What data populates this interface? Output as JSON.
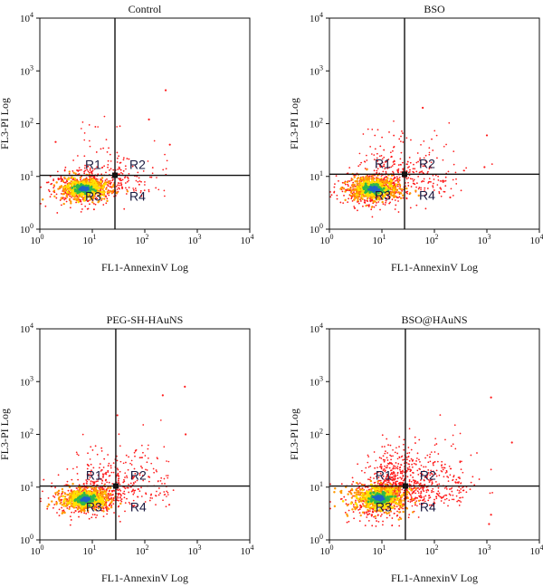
{
  "colors": {
    "scatter": "#ff1a1a",
    "density_mid": "#ff9900",
    "density_high": "#ffe100",
    "density_core": "#2eb84a",
    "density_peak": "#1e64c8",
    "axes": "#111111"
  },
  "chart_data": [
    {
      "type": "scatter",
      "title": "Control",
      "xlabel": "FL1-AnnexinV Log",
      "ylabel": "FL3-PI Log",
      "xscale": "log",
      "yscale": "log",
      "xlim": [
        1,
        10000
      ],
      "ylim": [
        1,
        10000
      ],
      "x_ticks": [
        {
          "base": "10",
          "exp": "0"
        },
        {
          "base": "10",
          "exp": "1"
        },
        {
          "base": "10",
          "exp": "2"
        },
        {
          "base": "10",
          "exp": "3"
        },
        {
          "base": "10",
          "exp": "4"
        }
      ],
      "y_ticks": [
        {
          "base": "10",
          "exp": "0"
        },
        {
          "base": "10",
          "exp": "1"
        },
        {
          "base": "10",
          "exp": "2"
        },
        {
          "base": "10",
          "exp": "3"
        },
        {
          "base": "10",
          "exp": "4"
        }
      ],
      "gate": [
        27,
        10.5
      ],
      "regions": [
        "R1",
        "R2",
        "R3",
        "R4"
      ],
      "population": {
        "center": [
          7,
          5.8
        ],
        "spread": [
          0.24,
          0.11
        ],
        "count": 520,
        "tail": 0.22,
        "outliers": 70
      },
      "highlights": [
        [
          250,
          430
        ],
        [
          120,
          120
        ],
        [
          300,
          40
        ],
        [
          2,
          45
        ]
      ]
    },
    {
      "type": "scatter",
      "title": "BSO",
      "xlabel": "FL1-AnnexinV Log",
      "ylabel": "FL3-PI Log",
      "xscale": "log",
      "yscale": "log",
      "xlim": [
        1,
        10000
      ],
      "ylim": [
        1,
        10000
      ],
      "x_ticks": [
        {
          "base": "10",
          "exp": "0"
        },
        {
          "base": "10",
          "exp": "1"
        },
        {
          "base": "10",
          "exp": "2"
        },
        {
          "base": "10",
          "exp": "3"
        },
        {
          "base": "10",
          "exp": "4"
        }
      ],
      "y_ticks": [
        {
          "base": "10",
          "exp": "0"
        },
        {
          "base": "10",
          "exp": "1"
        },
        {
          "base": "10",
          "exp": "2"
        },
        {
          "base": "10",
          "exp": "3"
        },
        {
          "base": "10",
          "exp": "4"
        }
      ],
      "gate": [
        27,
        11
      ],
      "regions": [
        "R1",
        "R2",
        "R3",
        "R4"
      ],
      "population": {
        "center": [
          7,
          5.8
        ],
        "spread": [
          0.25,
          0.12
        ],
        "count": 620,
        "tail": 0.32,
        "outliers": 130
      },
      "highlights": [
        [
          60,
          200
        ],
        [
          1000,
          60
        ],
        [
          900,
          15
        ],
        [
          200,
          4
        ]
      ]
    },
    {
      "type": "scatter",
      "title": "PEG-SH-HAuNS",
      "xlabel": "FL1-AnnexinV Log",
      "ylabel": "FL3-PI Log",
      "xscale": "log",
      "yscale": "log",
      "xlim": [
        1,
        10000
      ],
      "ylim": [
        1,
        10000
      ],
      "x_ticks": [
        {
          "base": "10",
          "exp": "0"
        },
        {
          "base": "10",
          "exp": "1"
        },
        {
          "base": "10",
          "exp": "2"
        },
        {
          "base": "10",
          "exp": "3"
        },
        {
          "base": "10",
          "exp": "4"
        }
      ],
      "y_ticks": [
        {
          "base": "10",
          "exp": "0"
        },
        {
          "base": "10",
          "exp": "1"
        },
        {
          "base": "10",
          "exp": "2"
        },
        {
          "base": "10",
          "exp": "3"
        },
        {
          "base": "10",
          "exp": "4"
        }
      ],
      "gate": [
        28,
        10.5
      ],
      "regions": [
        "R1",
        "R2",
        "R3",
        "R4"
      ],
      "population": {
        "center": [
          7.5,
          5.9
        ],
        "spread": [
          0.24,
          0.11
        ],
        "count": 600,
        "tail": 0.35,
        "outliers": 150
      },
      "highlights": [
        [
          580,
          800
        ],
        [
          220,
          550
        ],
        [
          600,
          100
        ],
        [
          30,
          230
        ]
      ]
    },
    {
      "type": "scatter",
      "title": "BSO@HAuNS",
      "xlabel": "FL1-AnnexinV Log",
      "ylabel": "FL3-PI Log",
      "xscale": "log",
      "yscale": "log",
      "xlim": [
        1,
        10000
      ],
      "ylim": [
        1,
        10000
      ],
      "x_ticks": [
        {
          "base": "10",
          "exp": "0"
        },
        {
          "base": "10",
          "exp": "1"
        },
        {
          "base": "10",
          "exp": "2"
        },
        {
          "base": "10",
          "exp": "3"
        },
        {
          "base": "10",
          "exp": "4"
        }
      ],
      "y_ticks": [
        {
          "base": "10",
          "exp": "0"
        },
        {
          "base": "10",
          "exp": "1"
        },
        {
          "base": "10",
          "exp": "2"
        },
        {
          "base": "10",
          "exp": "3"
        },
        {
          "base": "10",
          "exp": "4"
        }
      ],
      "gate": [
        28,
        10.5
      ],
      "regions": [
        "R1",
        "R2",
        "R3",
        "R4"
      ],
      "population": {
        "center": [
          9,
          6.2
        ],
        "spread": [
          0.27,
          0.14
        ],
        "count": 900,
        "tail": 0.55,
        "outliers": 260
      },
      "highlights": [
        [
          1200,
          500
        ],
        [
          3000,
          70
        ],
        [
          1100,
          2
        ],
        [
          1200,
          3
        ]
      ]
    }
  ]
}
